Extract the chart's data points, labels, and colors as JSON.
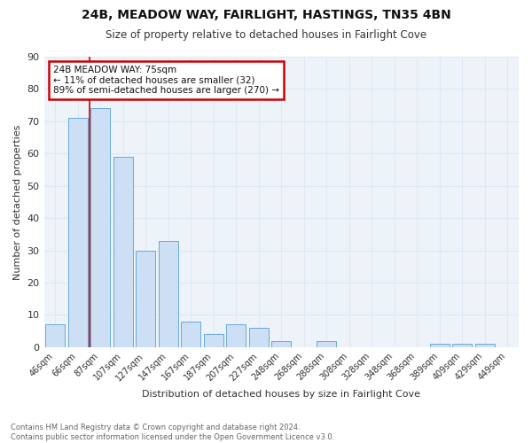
{
  "title1": "24B, MEADOW WAY, FAIRLIGHT, HASTINGS, TN35 4BN",
  "title2": "Size of property relative to detached houses in Fairlight Cove",
  "xlabel": "Distribution of detached houses by size in Fairlight Cove",
  "ylabel": "Number of detached properties",
  "categories": [
    "46sqm",
    "66sqm",
    "87sqm",
    "107sqm",
    "127sqm",
    "147sqm",
    "167sqm",
    "187sqm",
    "207sqm",
    "227sqm",
    "248sqm",
    "268sqm",
    "288sqm",
    "308sqm",
    "328sqm",
    "348sqm",
    "368sqm",
    "389sqm",
    "409sqm",
    "429sqm",
    "449sqm"
  ],
  "values": [
    7,
    71,
    74,
    59,
    30,
    33,
    8,
    4,
    7,
    6,
    2,
    0,
    2,
    0,
    0,
    0,
    0,
    1,
    1,
    1,
    0
  ],
  "bar_color": "#ccdff5",
  "bar_edge_color": "#6aaad4",
  "property_line_x": 1.5,
  "annotation_text": "24B MEADOW WAY: 75sqm\n← 11% of detached houses are smaller (32)\n89% of semi-detached houses are larger (270) →",
  "annotation_box_color": "white",
  "annotation_box_edge": "#cc0000",
  "vline_color": "#cc0000",
  "ylim": [
    0,
    90
  ],
  "yticks": [
    0,
    10,
    20,
    30,
    40,
    50,
    60,
    70,
    80,
    90
  ],
  "grid_color": "#dde8f5",
  "footer": "Contains HM Land Registry data © Crown copyright and database right 2024.\nContains public sector information licensed under the Open Government Licence v3.0.",
  "bg_color": "#eef3fa",
  "fig_bg_color": "#ffffff"
}
